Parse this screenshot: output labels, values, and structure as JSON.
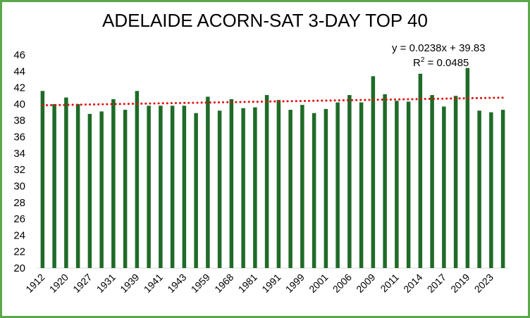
{
  "chart_data": {
    "type": "bar",
    "title": "ADELAIDE ACORN-SAT 3-DAY TOP 40",
    "xlabel": "",
    "ylabel": "",
    "ylim": [
      20,
      46
    ],
    "yticks": [
      20,
      22,
      24,
      26,
      28,
      30,
      32,
      34,
      36,
      38,
      40,
      42,
      44,
      46
    ],
    "categories": [
      "1912",
      "",
      "1920",
      "",
      "1927",
      "",
      "1931",
      "",
      "1939",
      "",
      "1941",
      "",
      "1943",
      "",
      "1959",
      "",
      "1968",
      "",
      "1981",
      "",
      "1991",
      "",
      "1999",
      "",
      "2001",
      "",
      "2006",
      "",
      "2009",
      "",
      "2011",
      "",
      "2014",
      "",
      "2017",
      "",
      "2019",
      "",
      "2023",
      ""
    ],
    "values": [
      41.6,
      40.0,
      40.8,
      40.0,
      38.8,
      39.1,
      40.6,
      39.3,
      41.6,
      39.8,
      39.8,
      39.8,
      39.8,
      38.9,
      40.9,
      39.2,
      40.6,
      39.5,
      39.6,
      41.1,
      40.5,
      39.3,
      39.9,
      38.9,
      39.4,
      40.2,
      41.1,
      40.2,
      43.4,
      41.2,
      40.4,
      40.3,
      43.7,
      41.1,
      39.7,
      41.0,
      44.4,
      39.2,
      39.0,
      39.3
    ],
    "bar_color": "#1f6b27",
    "grid": false,
    "legend": "none",
    "trendline": {
      "type": "linear",
      "slope": 0.0238,
      "intercept": 39.83,
      "color": "#e01010",
      "style": "dotted",
      "equation_label": "y = 0.0238x + 39.83",
      "r2_label": "R",
      "r2_sup": "2",
      "r2_value": " = 0.0485"
    }
  }
}
